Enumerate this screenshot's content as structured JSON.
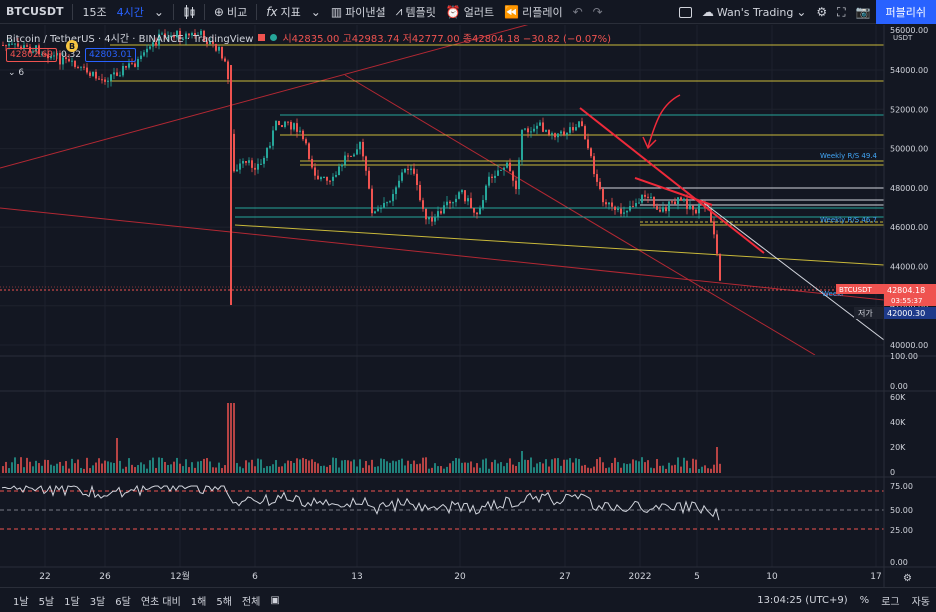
{
  "toolbar": {
    "symbol": "BTCUSDT",
    "intervals": [
      "15조",
      "4시간"
    ],
    "compare_label": "비교",
    "indicators_label": "지표",
    "financials_label": "파이낸셜",
    "templates_label": "템플릿",
    "alert_label": "얼러트",
    "replay_label": "리플레이",
    "layout_name": "Wan's Trading",
    "publish_label": "퍼블리쉬"
  },
  "legend": {
    "title": "Bitcoin / TetherUS · 4시간 · BINANCE · TradingView",
    "ohlc": "시42835.00 고42983.74 저42777.00 종42804.18 −30.82 (−0.07%)",
    "bid": "42802.69",
    "spread": "0.32",
    "ask": "42803.01",
    "collapsed_count": "6",
    "b_marker": "B"
  },
  "price_axis": {
    "currency": "USDT",
    "top_label": "56000.00",
    "ticks": [
      "54000.00",
      "52000.00",
      "50000.00",
      "48000.00",
      "46000.00",
      "44000.00",
      "42000.00",
      "40000.00"
    ],
    "tick_values": [
      54000,
      52000,
      50000,
      48000,
      46000,
      44000,
      42000,
      40000
    ],
    "current_symbol": "BTCUSDT",
    "current_price": "42804.18",
    "countdown": "03:55:37",
    "low_label": "저가",
    "low_price": "42000.30",
    "volume_ticks": [
      "60K",
      "40K",
      "20K",
      "0"
    ],
    "osc_top_ticks": [
      "100.00",
      "0.00"
    ],
    "rsi_ticks": [
      "75.00",
      "50.00",
      "25.00",
      "0.00"
    ],
    "weekly_label_1": "Weekly R/S 49.4",
    "weekly_label_2": "Weekly R/S 46.7",
    "weekly_label_3": "Weekl"
  },
  "time_axis": {
    "labels": [
      "22",
      "26",
      "12월",
      "6",
      "13",
      "20",
      "27",
      "2022",
      "5",
      "10",
      "17"
    ]
  },
  "bottom": {
    "ranges": [
      "1날",
      "5날",
      "1달",
      "3달",
      "6달",
      "연초 대비",
      "1해",
      "5해",
      "전체"
    ],
    "clock": "13:04:25 (UTC+9)",
    "percent": "%",
    "log": "로그",
    "auto": "자동"
  },
  "colors": {
    "up": "#26a69a",
    "down": "#ef5350",
    "accent": "#2962ff",
    "background": "#131722"
  }
}
